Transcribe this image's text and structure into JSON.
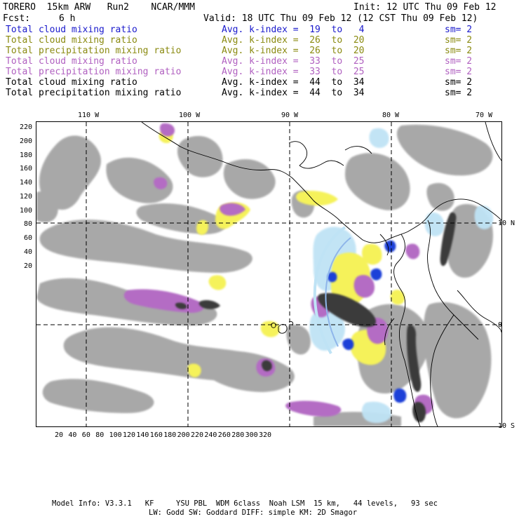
{
  "header": {
    "model_line": "TORERO  15km ARW   Run2    NCAR/MMM",
    "init_line": "Init: 12 UTC Thu 09 Feb 12",
    "fcst_label": "Fcst:",
    "fcst_value": "6 h",
    "valid_line": "Valid: 18 UTC Thu 09 Feb 12 (12 CST Thu 09 Feb 12)"
  },
  "legend": [
    {
      "field": "Total cloud mixing ratio",
      "kindex": "Avg. k-index =  19  to   4",
      "sm": "sm= 2",
      "color": "#1a1acc"
    },
    {
      "field": "Total cloud mixing ratio",
      "kindex": "Avg. k-index =  26  to  20",
      "sm": "sm= 2",
      "color": "#8a8a10"
    },
    {
      "field": "Total precipitation mixing ratio",
      "kindex": "Avg. k-index =  26  to  20",
      "sm": "sm= 2",
      "color": "#8a8a10"
    },
    {
      "field": "Total cloud mixing ratio",
      "kindex": "Avg. k-index =  33  to  25",
      "sm": "sm= 2",
      "color": "#b060c0"
    },
    {
      "field": "Total precipitation mixing ratio",
      "kindex": "Avg. k-index =  33  to  25",
      "sm": "sm= 2",
      "color": "#b060c0"
    },
    {
      "field": "Total cloud mixing ratio",
      "kindex": "Avg. k-index =  44  to  34",
      "sm": "sm= 2",
      "color": "#000000"
    },
    {
      "field": "Total precipitation mixing ratio",
      "kindex": "Avg. k-index =  44  to  34",
      "sm": "sm= 2",
      "color": "#000000"
    }
  ],
  "map": {
    "lon_labels": [
      "110 W",
      "100 W",
      "90 W",
      "80 W",
      "70 W"
    ],
    "lat_labels": [
      "10 N",
      "0",
      "10 S"
    ],
    "x_ticks": [
      "20",
      "40",
      "60",
      "80",
      "100",
      "120",
      "140",
      "160",
      "180",
      "200",
      "220",
      "240",
      "260",
      "280",
      "300",
      "320"
    ],
    "y_ticks": [
      "220",
      "200",
      "180",
      "160",
      "140",
      "120",
      "100",
      "80",
      "60",
      "40",
      "20"
    ],
    "colors": {
      "gray": "#9a9a9a",
      "yellow": "#f5f25a",
      "purple": "#b46cc4",
      "blue": "#1f3fd8",
      "lightblue": "#bfe3f5",
      "dark": "#3a3a3a"
    }
  },
  "footer": {
    "line1": "Model Info: V3.3.1   KF     YSU PBL  WDM 6class  Noah LSM  15 km,   44 levels,   93 sec",
    "line2": "LW: Godd SW: Goddard DIFF: simple KM: 2D Smagor"
  }
}
